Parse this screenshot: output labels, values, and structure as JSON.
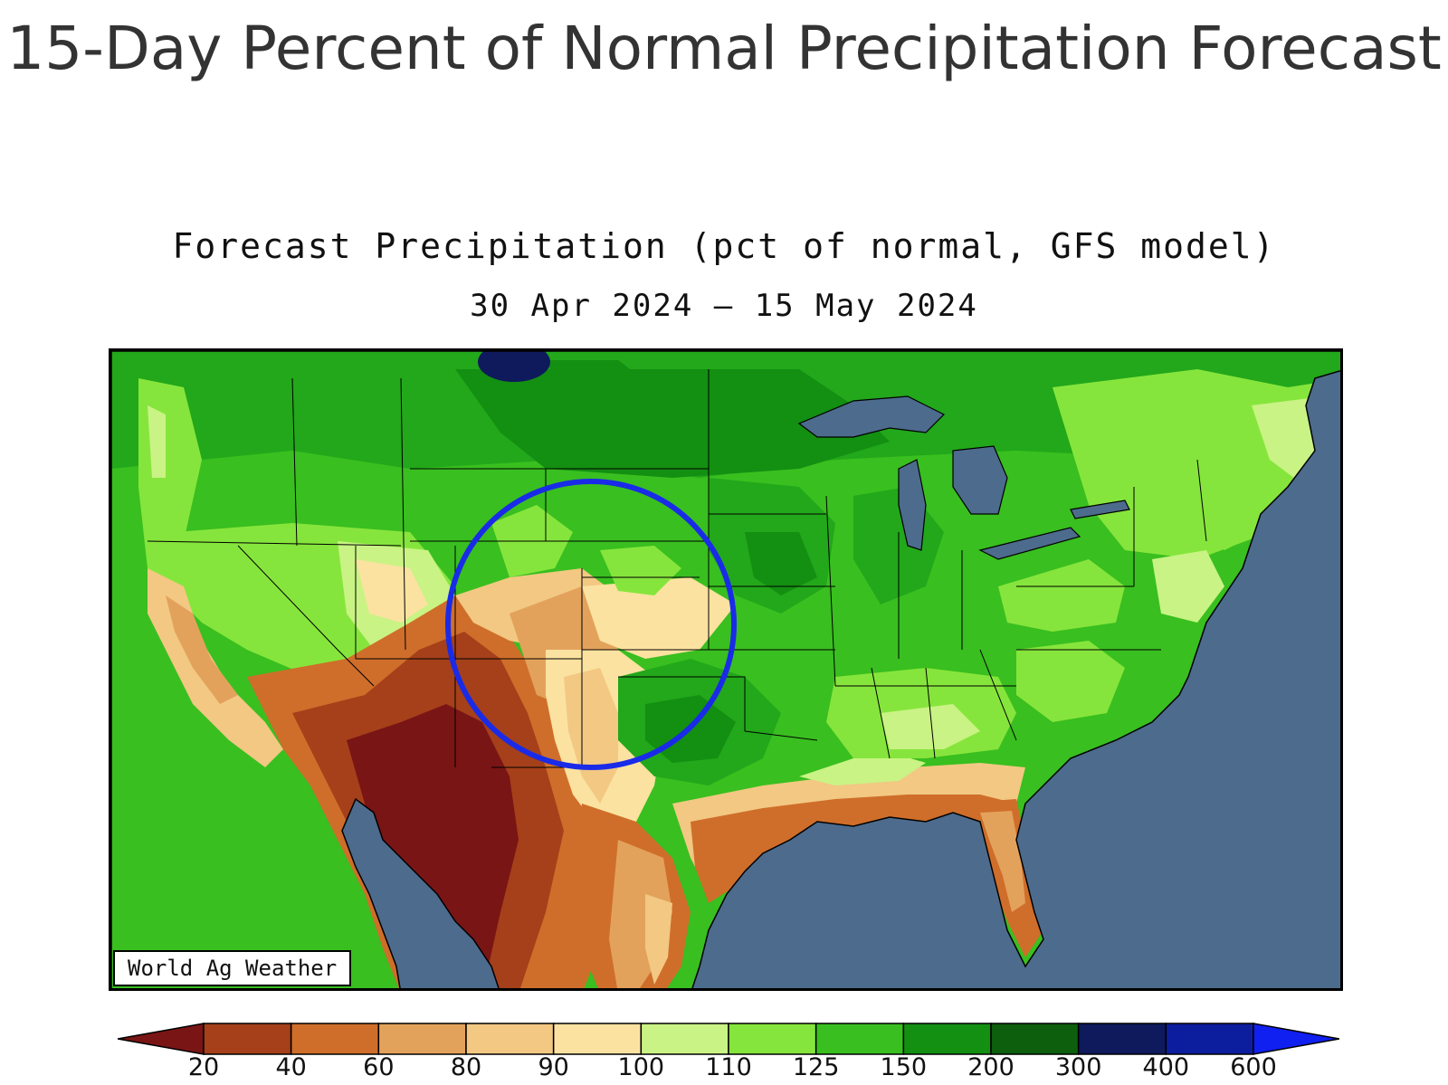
{
  "page": {
    "title": "15-Day Percent of Normal Precipitation Forecast"
  },
  "map": {
    "subtitle": "Forecast Precipitation (pct of normal, GFS model)",
    "dates": "30 Apr 2024 – 15 May 2024",
    "credit": "World Ag Weather",
    "highlight_circle_color": "#1a2be8",
    "ocean_color": "#4d6b8c"
  },
  "legend": {
    "ticks": [
      "20",
      "40",
      "60",
      "80",
      "90",
      "100",
      "110",
      "125",
      "150",
      "200",
      "300",
      "400",
      "600"
    ],
    "colors": [
      "#7a1515",
      "#a5401a",
      "#cf6e2a",
      "#e3a25c",
      "#f2c883",
      "#fbe2a0",
      "#c9f384",
      "#86e53c",
      "#39bf1f",
      "#138f12",
      "#0d5e0d",
      "#0e1a5c",
      "#0c1e9e",
      "#1020f0"
    ]
  }
}
